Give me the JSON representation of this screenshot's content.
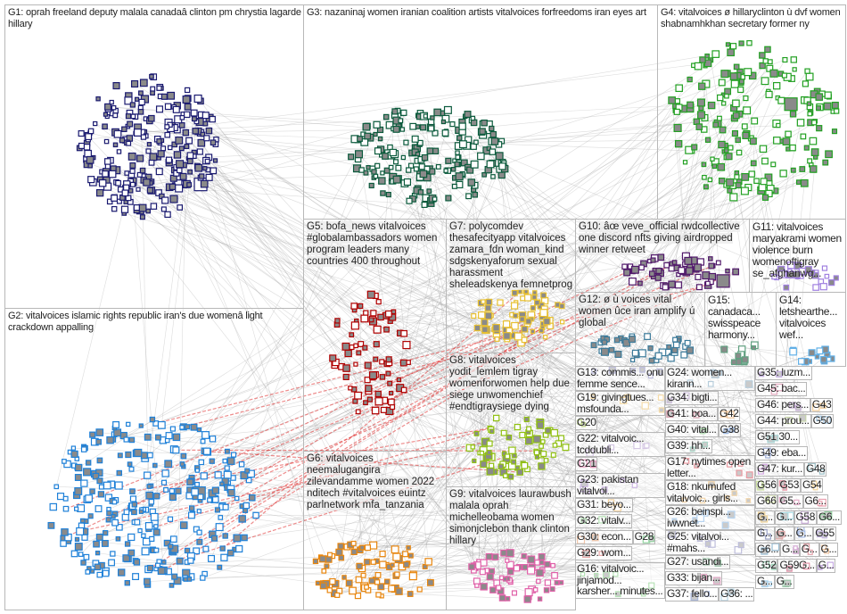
{
  "groups": [
    {
      "id": "G1",
      "label": "G1: oprah freeland deputy malala canadaâ clinton pm chrystia lagarde hillary",
      "color": "#1a1a70"
    },
    {
      "id": "G2",
      "label": "G2: vitalvoices islamic rights republic iran's due womenâ light crackdown appalling",
      "color": "#1e80d8"
    },
    {
      "id": "G3",
      "label": "G3: nazaninaj women iranian coalition artists vitalvoices forfreedoms iran eyes art",
      "color": "#0b5a3c"
    },
    {
      "id": "G4",
      "label": "G4: vitalvoices ø hillaryclinton ù dvf women shabnamhkhan secretary former ny",
      "color": "#22a022"
    },
    {
      "id": "G5",
      "label": "G5: bofa_news vitalvoices #globalambassadors women program leaders many countries 400 throughout",
      "color": "#b00000"
    },
    {
      "id": "G6",
      "label": "G6: vitalvoices neemalugangira zilevandamme women 2022 nditech #vitalvoices euintz parlnetwork mfa_tanzania",
      "color": "#e8860e"
    },
    {
      "id": "G7",
      "label": "G7: polycomdev thesafecityapp vitalvoices zamara_fdn woman_kind sdgskenyaforum sexual harassment sheleadskenya femnetprog",
      "color": "#e8c030"
    },
    {
      "id": "G8",
      "label": "G8: vitalvoices yodit_lemlem tigray womenforwomen help due siege unwomenchief #endtigraysiege dying",
      "color": "#90c010"
    },
    {
      "id": "G9",
      "label": "G9: vitalvoices laurawbush malala oprah michelleobama women simonjclebon thank clinton hillary",
      "color": "#e060a8"
    },
    {
      "id": "G10",
      "label": "G10: âœ veve_official rwdcollective one discord nfts giving airdropped winner retweet",
      "color": "#50186a"
    },
    {
      "id": "G11",
      "label": "G11: vitalvoices maryakrami women violence burn womenoftigray se_afghanwg...",
      "color": "#a080e0"
    },
    {
      "id": "G12",
      "label": "G12: ø ù voices vital women ûce iran amplify ú global",
      "color": "#3a7a9a"
    },
    {
      "id": "G15",
      "label": "G15: canadaca... swisspeace harmony...",
      "color": "#60a080"
    },
    {
      "id": "G14",
      "label": "G14: letshearthe... vitalvoices wef...",
      "color": "#60b0e8"
    },
    {
      "id": "G13",
      "label": "G13: commis... onu femme sence...",
      "color": "#6a6ab0"
    },
    {
      "id": "G19",
      "label": "G19: givingtues... msfounda...",
      "color": "#e8b040"
    },
    {
      "id": "G20",
      "label": "G20",
      "color": "#80b010"
    },
    {
      "id": "G22",
      "label": "G22: vitalvoic... tcddubli...",
      "color": "#a080c0"
    },
    {
      "id": "G21",
      "label": "G21",
      "color": "#d01870"
    },
    {
      "id": "G23",
      "label": "G23: pakistan vitalvoi...",
      "color": "#9060c0"
    },
    {
      "id": "G31",
      "label": "G31: beyo...",
      "color": "#e8a030"
    },
    {
      "id": "G32",
      "label": "G32: vitalv...",
      "color": "#60c060"
    },
    {
      "id": "G30",
      "label": "G30: econ...",
      "color": "#e08040"
    },
    {
      "id": "G28",
      "label": "G28",
      "color": "#10a030"
    },
    {
      "id": "G29",
      "label": "G29: wom...",
      "color": "#d04040"
    },
    {
      "id": "G16",
      "label": "G16: vitalvoic... jinjamod... karsher... minutes...",
      "color": "#60c060"
    },
    {
      "id": "G24",
      "label": "G24: women... kirann...",
      "color": "#6090b0"
    },
    {
      "id": "G34",
      "label": "G34: bigti...",
      "color": "#9070b0"
    },
    {
      "id": "G41",
      "label": "G41: boa...",
      "color": "#a02040"
    },
    {
      "id": "G42",
      "label": "G42",
      "color": "#e08020"
    },
    {
      "id": "G40",
      "label": "G40: vital...",
      "color": "#60c060"
    },
    {
      "id": "G38",
      "label": "G38",
      "color": "#2060c0"
    },
    {
      "id": "G39",
      "label": "G39: hh...",
      "color": "#40a080"
    },
    {
      "id": "G17",
      "label": "G17: nytimes open letter...",
      "color": "#d02030"
    },
    {
      "id": "G18",
      "label": "G18: nkumufed vitalvoic... girls...",
      "color": "#e0a040"
    },
    {
      "id": "G26",
      "label": "G26: beinspi... iwwnet...",
      "color": "#60a0e0"
    },
    {
      "id": "G25",
      "label": "G25: vitalvoi... #mahs...",
      "color": "#7070b0"
    },
    {
      "id": "G27",
      "label": "G27: usandi...",
      "color": "#208040"
    },
    {
      "id": "G33",
      "label": "G33: bijan...",
      "color": "#c04080"
    },
    {
      "id": "G37",
      "label": "G37: fello...",
      "color": "#4060b0"
    },
    {
      "id": "G36",
      "label": "G36: ...",
      "color": "#60a0c0"
    },
    {
      "id": "G35",
      "label": "G35: luzm...",
      "color": "#8050c0"
    },
    {
      "id": "G45",
      "label": "G45: bac...",
      "color": "#c04070"
    },
    {
      "id": "G46",
      "label": "G46: pers...",
      "color": "#8050a0"
    },
    {
      "id": "G43",
      "label": "G43",
      "color": "#e09020"
    },
    {
      "id": "G44",
      "label": "G44: prou...",
      "color": "#80a040"
    },
    {
      "id": "G50",
      "label": "G50",
      "color": "#3080c0"
    },
    {
      "id": "G51",
      "label": "G51 30...",
      "color": "#40a0a0"
    },
    {
      "id": "G49",
      "label": "G49: eba...",
      "color": "#3050a0"
    },
    {
      "id": "G47",
      "label": "G47: kur...",
      "color": "#a040c0"
    },
    {
      "id": "G48",
      "label": "G48",
      "color": "#207080"
    },
    {
      "id": "G56",
      "label": "G56",
      "color": "#90c030"
    },
    {
      "id": "G53",
      "label": "G53",
      "color": "#d02040"
    },
    {
      "id": "G54",
      "label": "G54",
      "color": "#e0a020"
    },
    {
      "id": "G66",
      "label": "G66",
      "color": "#a0c040"
    },
    {
      "id": "G57",
      "label": "G5...",
      "color": "#c04080"
    },
    {
      "id": "G6x",
      "label": "G6...",
      "color": "#d03050"
    },
    {
      "id": "Ga",
      "label": "G...",
      "color": "#e0a020"
    },
    {
      "id": "Gb",
      "label": "G...",
      "color": "#40b0c0"
    },
    {
      "id": "G58",
      "label": "G58",
      "color": "#8040a0"
    },
    {
      "id": "G6y",
      "label": "G6...",
      "color": "#10a030"
    },
    {
      "id": "Gc",
      "label": "G...",
      "color": "#203080"
    },
    {
      "id": "Gd",
      "label": "G...",
      "color": "#c04040"
    },
    {
      "id": "Ge",
      "label": "G...",
      "color": "#3060c0"
    },
    {
      "id": "G55",
      "label": "G55",
      "color": "#8060c0"
    },
    {
      "id": "G6z",
      "label": "G6...",
      "color": "#2070a0"
    },
    {
      "id": "Gf",
      "label": "G...",
      "color": "#a040a0"
    },
    {
      "id": "Gg",
      "label": "G...",
      "color": "#c03040"
    },
    {
      "id": "Gh",
      "label": "G...",
      "color": "#e08030"
    },
    {
      "id": "G52",
      "label": "G52",
      "color": "#20a060"
    },
    {
      "id": "G59",
      "label": "G59G...",
      "color": "#c01040"
    },
    {
      "id": "Gi",
      "label": "G...",
      "color": "#8040c0"
    },
    {
      "id": "Gj",
      "label": "G...",
      "color": "#40a0e0"
    },
    {
      "id": "Gk",
      "label": "G...",
      "color": "#208040"
    }
  ],
  "edge_color": "#9a9a9a",
  "highlight_edge_color": "#e03030"
}
